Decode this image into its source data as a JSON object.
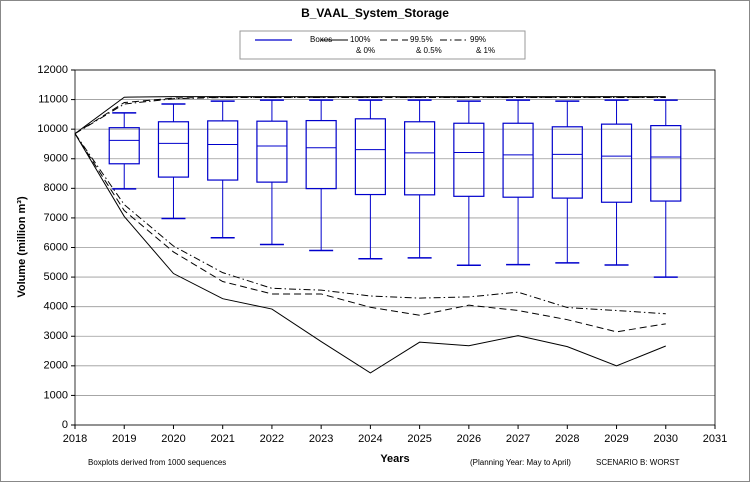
{
  "chart_data": {
    "type": "boxplot_lines",
    "title": "B_VAAL_System_Storage",
    "xlabel": "Years",
    "ylabel": "Volume (million m³)",
    "notes": [
      "Boxplots derived from 1000 sequences",
      "(Planning Year: May to April)",
      "SCENARIO B: WORST"
    ],
    "xlim": [
      2018,
      2031
    ],
    "xticks": [
      2018,
      2019,
      2020,
      2021,
      2022,
      2023,
      2024,
      2025,
      2026,
      2027,
      2028,
      2029,
      2030,
      2031
    ],
    "ylim": [
      0,
      12000
    ],
    "yticks": [
      0,
      1000,
      2000,
      3000,
      4000,
      5000,
      6000,
      7000,
      8000,
      9000,
      10000,
      11000,
      12000
    ],
    "grid": true,
    "boxes": {
      "name": "Boxes",
      "color": "#0000cc",
      "x": [
        2019,
        2020,
        2021,
        2022,
        2023,
        2024,
        2025,
        2026,
        2027,
        2028,
        2029,
        2030
      ],
      "whislo": [
        7980,
        6980,
        6330,
        6100,
        5900,
        5620,
        5650,
        5400,
        5420,
        5480,
        5410,
        5000
      ],
      "q1": [
        8830,
        8380,
        8280,
        8210,
        7990,
        7790,
        7780,
        7730,
        7700,
        7670,
        7530,
        7570
      ],
      "med": [
        9620,
        9520,
        9480,
        9430,
        9370,
        9310,
        9200,
        9210,
        9130,
        9150,
        9090,
        9060
      ],
      "q3": [
        10050,
        10250,
        10280,
        10270,
        10290,
        10350,
        10250,
        10200,
        10200,
        10080,
        10170,
        10120
      ],
      "whishi": [
        10550,
        10850,
        10950,
        10980,
        10980,
        10980,
        10980,
        10950,
        10980,
        10950,
        10980,
        10980
      ]
    },
    "x": [
      2018,
      2019,
      2020,
      2021,
      2022,
      2023,
      2024,
      2025,
      2026,
      2027,
      2028,
      2029,
      2030
    ],
    "series": [
      {
        "name": [
          "100%",
          "& 0%"
        ],
        "color": "#000000",
        "dash": "solid",
        "lower": [
          9850,
          7050,
          5120,
          4270,
          3920,
          2820,
          1760,
          2800,
          2680,
          3020,
          2650,
          2000,
          2670
        ],
        "upper": [
          9850,
          11080,
          11100,
          11100,
          11100,
          11100,
          11100,
          11100,
          11100,
          11100,
          11100,
          11100,
          11100
        ]
      },
      {
        "name": [
          "99.5%",
          "& 0.5%"
        ],
        "color": "#000000",
        "dash": "dashed",
        "lower": [
          9850,
          7250,
          5850,
          4850,
          4430,
          4430,
          3980,
          3710,
          4050,
          3870,
          3560,
          3150,
          3420
        ],
        "upper": [
          9850,
          10900,
          11050,
          11080,
          11080,
          11080,
          11080,
          11080,
          11080,
          11080,
          11080,
          11080,
          11080
        ]
      },
      {
        "name": [
          "99%",
          "& 1%"
        ],
        "color": "#000000",
        "dash": "dashdot",
        "lower": [
          9850,
          7450,
          6050,
          5150,
          4620,
          4560,
          4360,
          4290,
          4330,
          4490,
          3970,
          3870,
          3760
        ],
        "upper": [
          9850,
          10850,
          11030,
          11070,
          11070,
          11070,
          11070,
          11070,
          11070,
          11070,
          11070,
          11070,
          11070
        ]
      }
    ]
  }
}
